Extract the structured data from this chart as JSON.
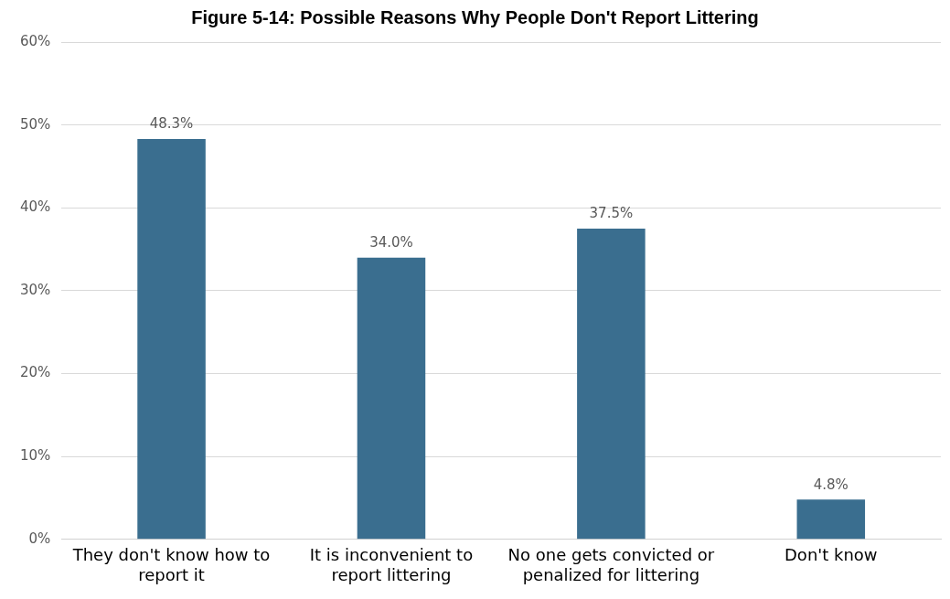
{
  "chart_data": {
    "type": "bar",
    "title": "Figure 5-14: Possible Reasons Why People Don't Report Littering",
    "categories": [
      "They don't know how to report it",
      "It is inconvenient to report littering",
      "No one gets convicted or penalized for littering",
      "Don't know"
    ],
    "values": [
      48.3,
      34.0,
      37.5,
      4.8
    ],
    "value_labels": [
      "48.3%",
      "34.0%",
      "37.5%",
      "4.8%"
    ],
    "color": "#3a6e8f",
    "ylim": [
      0,
      60
    ],
    "yticks": [
      {
        "value": 0,
        "label": "0%"
      },
      {
        "value": 10,
        "label": "10%"
      },
      {
        "value": 20,
        "label": "20%"
      },
      {
        "value": 30,
        "label": "30%"
      },
      {
        "value": 40,
        "label": "40%"
      },
      {
        "value": 50,
        "label": "50%"
      },
      {
        "value": 60,
        "label": "60%"
      }
    ],
    "grid": "y",
    "legend": false
  }
}
